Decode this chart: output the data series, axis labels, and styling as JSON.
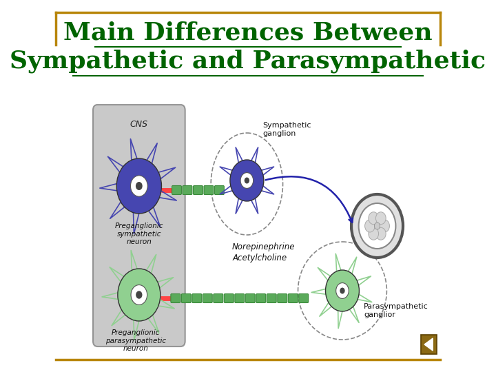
{
  "title_line1": "Main Differences Between",
  "title_line2": "Sympathetic and Parasympathetic",
  "title_color": "#006400",
  "title_fontsize": 26,
  "bg_color": "#ffffff",
  "border_color": "#b8860b",
  "cns_box_color": "#c0c0c0",
  "sym_neuron_color": "#4646b0",
  "para_neuron_color": "#90d090",
  "axon_color": "#5aaa5a",
  "synapse_color": "#ff4444",
  "label_cns": "CNS",
  "label_preganglionic_sym": "Preganglionic\nsympathetic\nneuron",
  "label_preganglionic_para": "Preganglionic\nparasympathetic\nneuron",
  "label_sympathetic_ganglion": "Sympathetic\nganglion",
  "label_parasympathetic_ganglion": "Parasympathetic\nganglior",
  "label_norepinephrine": "Norepinephrine",
  "label_acetylcholine": "Acetylcholine",
  "nav_arrow_color": "#8B6914",
  "bottom_line_color": "#b8860b"
}
